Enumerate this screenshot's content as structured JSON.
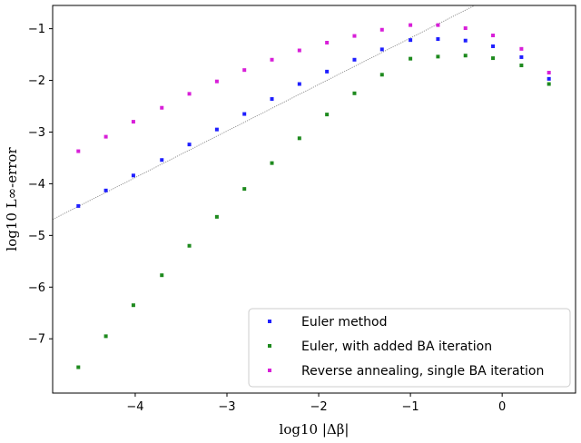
{
  "chart_data": {
    "type": "scatter",
    "xlabel": "log10 |Δβ|",
    "ylabel": "log10 L∞-error",
    "xlim": [
      -4.9,
      0.8
    ],
    "ylim": [
      -8.05,
      -0.55
    ],
    "xticks": [
      -4,
      -3,
      -2,
      -1,
      0
    ],
    "yticks": [
      -7,
      -6,
      -5,
      -4,
      -3,
      -2,
      -1
    ],
    "grid": false,
    "legend_position": "lower-right",
    "series": [
      {
        "name": "Euler method",
        "color": "#1f1fff",
        "x": [
          -4.62,
          -4.32,
          -4.02,
          -3.71,
          -3.41,
          -3.11,
          -2.81,
          -2.51,
          -2.21,
          -1.91,
          -1.61,
          -1.31,
          -1.0,
          -0.7,
          -0.4,
          -0.1,
          0.21,
          0.51
        ],
        "y": [
          -4.43,
          -4.13,
          -3.84,
          -3.54,
          -3.24,
          -2.95,
          -2.65,
          -2.36,
          -2.07,
          -1.83,
          -1.6,
          -1.4,
          -1.22,
          -1.2,
          -1.23,
          -1.34,
          -1.55,
          -1.97
        ]
      },
      {
        "name": "Euler, with added BA iteration",
        "color": "#1e8a1e",
        "x": [
          -4.62,
          -4.32,
          -4.02,
          -3.71,
          -3.41,
          -3.11,
          -2.81,
          -2.51,
          -2.21,
          -1.91,
          -1.61,
          -1.31,
          -1.0,
          -0.7,
          -0.4,
          -0.1,
          0.21,
          0.51
        ],
        "y": [
          -7.55,
          -6.95,
          -6.35,
          -5.77,
          -5.2,
          -4.64,
          -4.1,
          -3.6,
          -3.12,
          -2.66,
          -2.25,
          -1.89,
          -1.58,
          -1.54,
          -1.52,
          -1.57,
          -1.71,
          -2.07
        ]
      },
      {
        "name": "Reverse annealing, single BA iteration",
        "color": "#d81fd8",
        "x": [
          -4.62,
          -4.32,
          -4.02,
          -3.71,
          -3.41,
          -3.11,
          -2.81,
          -2.51,
          -2.21,
          -1.91,
          -1.61,
          -1.31,
          -1.0,
          -0.7,
          -0.4,
          -0.1,
          0.21,
          0.51
        ],
        "y": [
          -3.37,
          -3.09,
          -2.8,
          -2.53,
          -2.26,
          -2.02,
          -1.8,
          -1.6,
          -1.42,
          -1.27,
          -1.14,
          -1.02,
          -0.93,
          -0.93,
          -0.99,
          -1.13,
          -1.39,
          -1.85
        ]
      }
    ],
    "reference_line": {
      "description": "dotted reference line",
      "x": [
        -4.9,
        -0.3
      ],
      "y": [
        -4.69,
        -0.55
      ],
      "color": "#888888"
    }
  }
}
